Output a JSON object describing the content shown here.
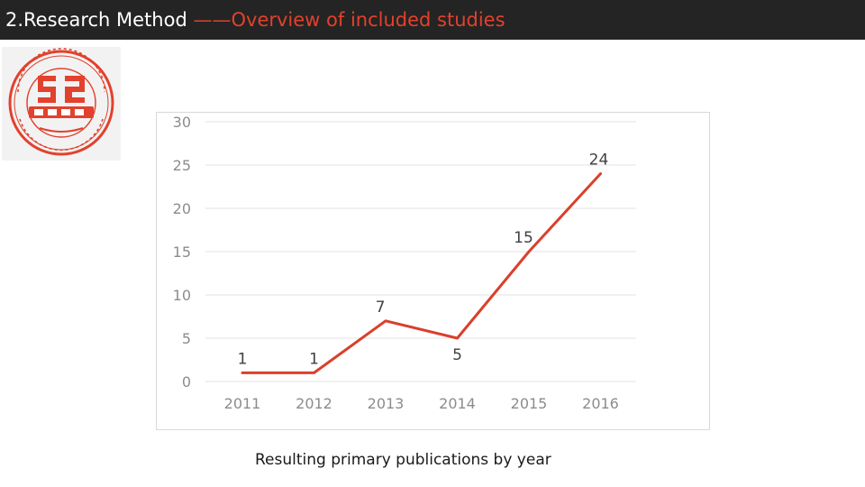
{
  "header": {
    "section": "2.Research Method ",
    "dash": "——",
    "subtitle": "Overview of included studies"
  },
  "logo": {
    "icon": "university-seal-icon",
    "color": "#e2412d"
  },
  "caption": "Resulting primary publications by year",
  "chart_data": {
    "type": "line",
    "categories": [
      "2011",
      "2012",
      "2013",
      "2014",
      "2015",
      "2016"
    ],
    "series": [
      {
        "values": [
          1,
          1,
          7,
          5,
          15,
          24
        ],
        "color": "#d9402b"
      }
    ],
    "yticks": [
      0,
      5,
      10,
      15,
      20,
      25,
      30
    ],
    "ylim": [
      0,
      30
    ],
    "grid": true,
    "data_labels": true,
    "legend": false,
    "title": "",
    "xlabel": "",
    "ylabel": ""
  }
}
